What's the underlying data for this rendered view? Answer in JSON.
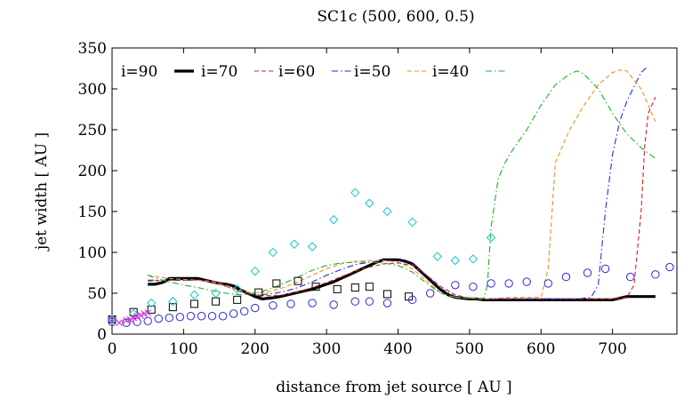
{
  "chart_data": {
    "type": "line",
    "title": "SC1c (500, 600, 0.5)",
    "xlabel": "distance from jet source [ AU ]",
    "ylabel": "jet width [ AU ]",
    "xlim": [
      0,
      790
    ],
    "ylim": [
      0,
      350
    ],
    "xticks": [
      0,
      100,
      200,
      300,
      400,
      500,
      600,
      700
    ],
    "yticks": [
      0,
      50,
      100,
      150,
      200,
      250,
      300,
      350
    ],
    "grid": false,
    "legend_position": "top-left",
    "series": [
      {
        "name": "i=90",
        "style": "solid-thick",
        "color": "#000000",
        "x": [
          50,
          60,
          70,
          75,
          80,
          90,
          100,
          110,
          120,
          130,
          140,
          150,
          160,
          170,
          180,
          190,
          200,
          210,
          220,
          230,
          240,
          250,
          260,
          270,
          280,
          290,
          300,
          310,
          320,
          330,
          340,
          350,
          360,
          370,
          380,
          390,
          400,
          410,
          420,
          430,
          440,
          450,
          460,
          470,
          480,
          490,
          500,
          510,
          520,
          530,
          540,
          560,
          580,
          600,
          650,
          700,
          720,
          760
        ],
        "y": [
          61,
          61,
          63,
          65,
          68,
          68,
          68,
          68,
          68,
          66,
          64,
          62,
          61,
          59,
          54,
          50,
          46,
          43,
          44,
          45,
          47,
          49,
          51,
          53,
          55,
          58,
          61,
          64,
          68,
          72,
          76,
          80,
          84,
          88,
          91,
          91,
          91,
          89,
          86,
          78,
          70,
          62,
          54,
          48,
          45,
          44,
          43,
          43,
          42,
          42,
          42,
          42,
          42,
          42,
          42,
          42,
          46,
          46
        ]
      },
      {
        "name": "i=70",
        "style": "dashed",
        "color": "#d62020",
        "x": [
          50,
          80,
          100,
          120,
          140,
          160,
          180,
          200,
          220,
          240,
          260,
          280,
          300,
          320,
          340,
          360,
          380,
          400,
          420,
          440,
          460,
          480,
          500,
          520,
          540,
          560,
          600,
          650,
          700,
          720,
          730,
          740,
          745,
          750,
          760
        ],
        "y": [
          65,
          66,
          66,
          66,
          65,
          60,
          53,
          48,
          47,
          48,
          52,
          57,
          63,
          70,
          77,
          82,
          86,
          87,
          84,
          72,
          58,
          48,
          44,
          43,
          43,
          43,
          43,
          43,
          43,
          45,
          60,
          150,
          230,
          270,
          290
        ]
      },
      {
        "name": "i=60",
        "style": "dash-dot",
        "color": "#2a2ad6",
        "x": [
          50,
          80,
          100,
          120,
          140,
          160,
          180,
          200,
          220,
          240,
          260,
          280,
          300,
          320,
          340,
          360,
          380,
          400,
          420,
          440,
          460,
          480,
          500,
          520,
          540,
          560,
          600,
          650,
          670,
          680,
          690,
          700,
          710,
          720,
          740,
          750
        ],
        "y": [
          66,
          66,
          66,
          66,
          64,
          58,
          52,
          48,
          49,
          52,
          57,
          64,
          72,
          79,
          85,
          88,
          90,
          90,
          86,
          72,
          56,
          46,
          44,
          43,
          43,
          43,
          43,
          43,
          45,
          60,
          150,
          220,
          260,
          285,
          320,
          328
        ]
      },
      {
        "name": "i=50",
        "style": "dashed",
        "color": "#f09020",
        "x": [
          50,
          80,
          100,
          120,
          140,
          160,
          180,
          200,
          220,
          240,
          260,
          280,
          300,
          320,
          340,
          360,
          380,
          400,
          420,
          440,
          460,
          480,
          500,
          520,
          540,
          560,
          580,
          600,
          610,
          620,
          630,
          640,
          660,
          680,
          700,
          710,
          720,
          740,
          760
        ],
        "y": [
          72,
          68,
          67,
          66,
          64,
          58,
          53,
          50,
          52,
          57,
          64,
          72,
          80,
          86,
          89,
          90,
          90,
          88,
          80,
          65,
          50,
          45,
          44,
          43,
          44,
          45,
          45,
          45,
          80,
          210,
          230,
          250,
          280,
          305,
          320,
          323,
          322,
          300,
          260
        ]
      },
      {
        "name": "i=40",
        "style": "dash-dot",
        "color": "#20b020",
        "x": [
          50,
          70,
          100,
          120,
          140,
          160,
          180,
          200,
          220,
          240,
          260,
          280,
          300,
          320,
          340,
          360,
          380,
          400,
          420,
          440,
          460,
          480,
          500,
          520,
          525,
          530,
          540,
          550,
          560,
          580,
          600,
          620,
          640,
          650,
          660,
          680,
          700,
          720,
          740,
          760
        ],
        "y": [
          72,
          66,
          60,
          57,
          53,
          50,
          48,
          50,
          55,
          62,
          70,
          78,
          84,
          87,
          88,
          88,
          87,
          84,
          76,
          62,
          50,
          45,
          44,
          44,
          60,
          130,
          190,
          210,
          225,
          250,
          280,
          305,
          318,
          322,
          318,
          300,
          270,
          245,
          228,
          215
        ]
      }
    ],
    "marker_series": [
      {
        "name": "squares",
        "marker": "square",
        "color": "#000000",
        "x": [
          0,
          30,
          55,
          85,
          115,
          145,
          175,
          205,
          230,
          260,
          285,
          315,
          340,
          360,
          385,
          415
        ],
        "y": [
          18,
          27,
          30,
          33,
          37,
          40,
          42,
          51,
          62,
          65,
          58,
          55,
          57,
          58,
          49,
          46
        ]
      },
      {
        "name": "diamonds",
        "marker": "diamond",
        "color": "#30c8c8",
        "x": [
          0,
          30,
          55,
          85,
          115,
          145,
          175,
          200,
          225,
          255,
          280,
          310,
          340,
          360,
          385,
          420,
          455,
          480,
          505,
          530
        ],
        "y": [
          18,
          25,
          38,
          40,
          48,
          50,
          55,
          77,
          100,
          110,
          107,
          140,
          173,
          160,
          150,
          137,
          95,
          90,
          92,
          118
        ]
      },
      {
        "name": "circles",
        "marker": "circle",
        "color": "#2a2ad6",
        "x": [
          0,
          20,
          35,
          50,
          65,
          80,
          95,
          110,
          125,
          140,
          155,
          170,
          185,
          200,
          225,
          250,
          280,
          310,
          340,
          360,
          385,
          420,
          445,
          480,
          505,
          530,
          555,
          580,
          610,
          635,
          665,
          690,
          725,
          760,
          780
        ],
        "y": [
          15,
          14,
          15,
          16,
          19,
          20,
          21,
          22,
          22,
          22,
          22,
          25,
          28,
          32,
          35,
          37,
          38,
          36,
          40,
          40,
          38,
          42,
          50,
          60,
          58,
          62,
          62,
          64,
          62,
          70,
          75,
          80,
          70,
          73,
          82
        ]
      },
      {
        "name": "crosses",
        "marker": "x",
        "color": "#d020d0",
        "x": [
          0,
          10,
          20,
          25,
          30,
          35,
          40,
          45,
          50
        ],
        "y": [
          18,
          14,
          17,
          18,
          20,
          22,
          23,
          25,
          26
        ]
      }
    ]
  }
}
